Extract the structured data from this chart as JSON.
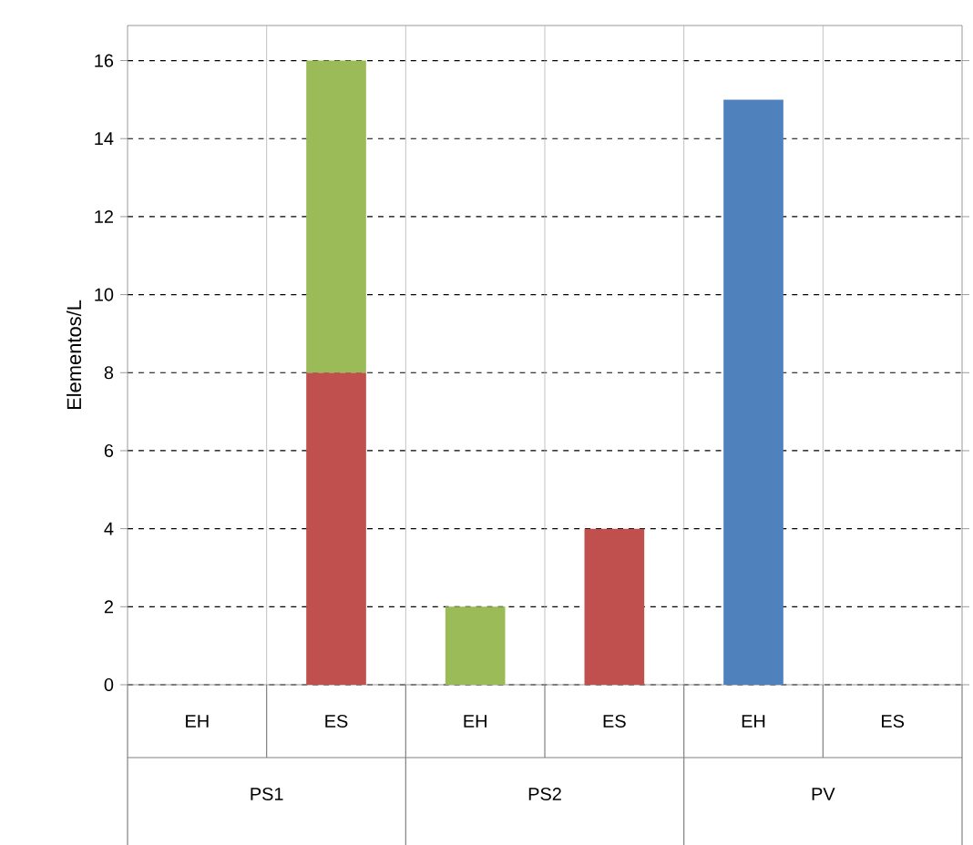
{
  "chart_data": {
    "type": "bar",
    "stacked": true,
    "ylabel": "Elementos/L",
    "categories": [
      "EH",
      "ES",
      "EH",
      "ES",
      "EH",
      "ES"
    ],
    "annotations": [
      "PS1",
      "PS2",
      "PV"
    ],
    "series": [
      {
        "color": "#c0504d",
        "values": [
          null,
          8,
          null,
          4,
          null,
          null
        ]
      },
      {
        "color": "#9bbb59",
        "values": [
          null,
          8,
          2,
          null,
          null,
          null
        ]
      },
      {
        "color": "#4f81bd",
        "values": [
          null,
          null,
          null,
          null,
          15,
          null
        ]
      }
    ],
    "ylim": [
      0,
      16.9
    ],
    "yticks": [
      0,
      2,
      4,
      6,
      8,
      10,
      12,
      14,
      16
    ],
    "grid": "y"
  }
}
